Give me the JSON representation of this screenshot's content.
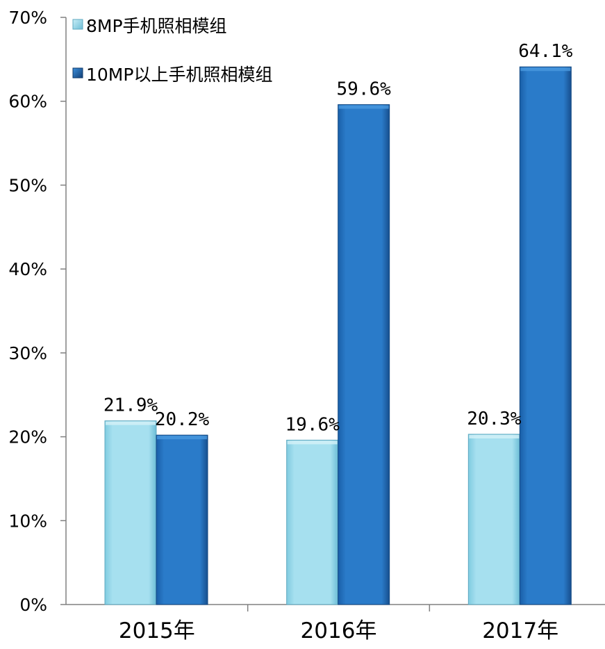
{
  "chart_data": {
    "type": "bar",
    "categories": [
      "2015年",
      "2016年",
      "2017年"
    ],
    "series": [
      {
        "name": "8MP手机照相模组",
        "values": [
          21.9,
          19.6,
          20.3
        ],
        "labels": [
          "21.9%",
          "19.6%",
          "20.3%"
        ],
        "color": "#9fdcec"
      },
      {
        "name": "10MP以上手机照相模组",
        "values": [
          20.2,
          59.6,
          64.1
        ],
        "labels": [
          "20.2%",
          "59.6%",
          "64.1%"
        ],
        "color": "#2676c4"
      }
    ],
    "ylim": [
      0,
      70
    ],
    "yticks": [
      "0%",
      "10%",
      "20%",
      "30%",
      "40%",
      "50%",
      "60%",
      "70%"
    ],
    "grid": false,
    "legend_position": "top-left",
    "title": "",
    "xlabel": "",
    "ylabel": ""
  }
}
